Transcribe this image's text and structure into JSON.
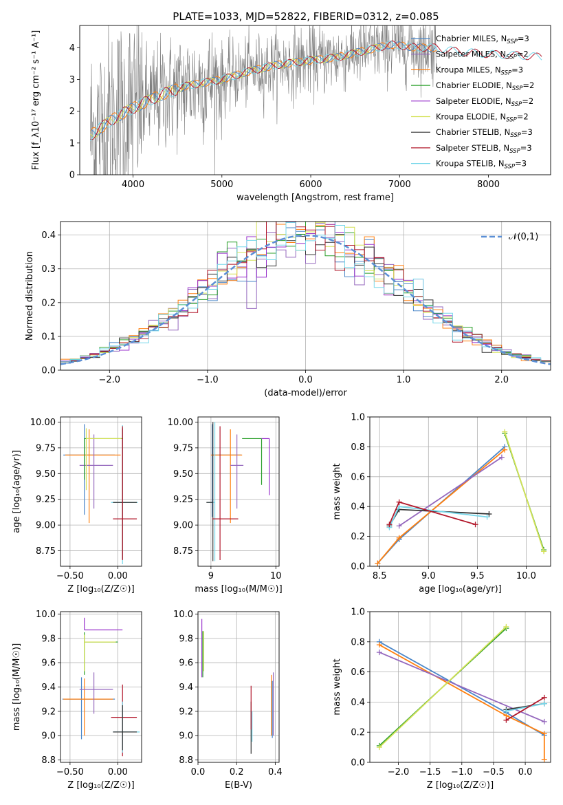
{
  "colors": {
    "Chabrier MILES": "#4a86c8",
    "Salpeter MILES": "#9467bd",
    "Kroupa MILES": "#ff7f0e",
    "Chabrier ELODIE": "#2ca02c",
    "Salpeter ELODIE": "#9932cc",
    "Kroupa ELODIE": "#d4e157",
    "Chabrier STELIB": "#333333",
    "Salpeter STELIB": "#b2182b",
    "Kroupa STELIB": "#76d7ea",
    "normal": "#5b8fd6",
    "spectrum": "#808080"
  },
  "chart_data": [
    {
      "type": "line",
      "title": "PLATE=1033, MJD=52822, FIBERID=0312, z=0.085",
      "xlabel": "wavelength [Angstrom, rest frame]",
      "ylabel": "Flux [f_λ10⁻¹⁷ erg cm⁻² s⁻¹ A⁻¹]",
      "xlim": [
        3400,
        8700
      ],
      "ylim": [
        0,
        4.7
      ],
      "xticks": [
        4000,
        5000,
        6000,
        7000,
        8000
      ],
      "yticks": [
        0,
        1,
        2,
        3,
        4
      ],
      "legend_position": "right",
      "series": [
        {
          "name": "Chabrier MILES, N_SSP=3"
        },
        {
          "name": "Salpeter MILES, N_SSP=2"
        },
        {
          "name": "Kroupa MILES, N_SSP=3"
        },
        {
          "name": "Chabrier ELODIE, N_SSP=2"
        },
        {
          "name": "Salpeter ELODIE, N_SSP=2"
        },
        {
          "name": "Kroupa ELODIE, N_SSP=2"
        },
        {
          "name": "Chabrier STELIB, N_SSP=3"
        },
        {
          "name": "Salpeter STELIB, N_SSP=3"
        },
        {
          "name": "Kroupa STELIB, N_SSP=3"
        }
      ],
      "continuum": {
        "x": [
          3500,
          3600,
          3800,
          4000,
          4300,
          4600,
          5000,
          5300,
          5600,
          6000,
          6300,
          6600,
          6900,
          7200,
          7400,
          7600,
          8000,
          8400,
          8600
        ],
        "y": [
          1.2,
          1.4,
          1.8,
          2.1,
          2.5,
          2.8,
          3.0,
          3.25,
          3.45,
          3.6,
          3.7,
          3.9,
          4.1,
          4.0,
          4.0,
          3.9,
          3.8,
          3.75,
          3.7
        ]
      }
    },
    {
      "type": "line",
      "xlabel": "(data-model)/error",
      "ylabel": "Normed distribution",
      "xlim": [
        -2.5,
        2.5
      ],
      "ylim": [
        0,
        0.44
      ],
      "xticks": [
        -2,
        -1,
        0,
        1,
        2
      ],
      "yticks": [
        0.0,
        0.1,
        0.2,
        0.3,
        0.4
      ],
      "legend": "𝒩(0,1)",
      "legend_position": "top-right",
      "bin_width": 0.1
    },
    {
      "type": "scatter",
      "xlabel": "Z [log₁₀(Z/Z☉)]",
      "ylabel": "age  [log₁₀(age/yr)]",
      "xlim": [
        -0.6,
        0.25
      ],
      "ylim": [
        8.6,
        10.05
      ],
      "xticks": [
        -0.5,
        0.0
      ],
      "yticks": [
        8.75,
        9.0,
        9.25,
        9.5,
        9.75,
        10.0
      ],
      "points": [
        {
          "x": -0.35,
          "y": 9.68,
          "xerr": [
            0.22,
            0.32
          ],
          "yerr": [
            0.58,
            0.3
          ],
          "color": "Chabrier MILES"
        },
        {
          "x": -0.3,
          "y": 9.68,
          "xerr": [
            0.25,
            0.33
          ],
          "yerr": [
            0.66,
            0.25
          ],
          "color": "Kroupa MILES"
        },
        {
          "x": -0.25,
          "y": 9.58,
          "xerr": [
            0.15,
            0.2
          ],
          "yerr": [
            0.42,
            0.3
          ],
          "color": "Salpeter MILES"
        },
        {
          "x": -0.35,
          "y": 9.84,
          "xerr": [
            0.0,
            0.4
          ],
          "yerr": [
            0.4,
            0.0
          ],
          "color": "Chabrier ELODIE"
        },
        {
          "x": -0.33,
          "y": 9.84,
          "xerr": [
            0.0,
            0.37
          ],
          "yerr": [
            0.5,
            0.1
          ],
          "color": "Kroupa ELODIE"
        },
        {
          "x": 0.05,
          "y": 9.22,
          "xerr": [
            0.12,
            0.16
          ],
          "yerr": [
            0.6,
            0.75
          ],
          "color": "Kroupa STELIB"
        },
        {
          "x": 0.05,
          "y": 9.22,
          "xerr": [
            0.1,
            0.15
          ],
          "yerr": [
            0.55,
            0.72
          ],
          "color": "Chabrier STELIB"
        },
        {
          "x": 0.05,
          "y": 9.06,
          "xerr": [
            0.1,
            0.15
          ],
          "yerr": [
            0.4,
            0.9
          ],
          "color": "Salpeter STELIB"
        }
      ]
    },
    {
      "type": "scatter",
      "xlabel": "mass [log₁₀(M/M☉)]",
      "ylabel": "",
      "xlim": [
        8.8,
        10.05
      ],
      "ylim": [
        8.6,
        10.05
      ],
      "xticks": [
        9,
        10
      ],
      "yticks": [
        8.75,
        9.0,
        9.25,
        9.5,
        9.75,
        10.0
      ],
      "points": [
        {
          "x": 9.02,
          "y": 9.68,
          "xerr": [
            0.0,
            0.45
          ],
          "yerr": [
            0.6,
            0.3
          ],
          "color": "Chabrier MILES"
        },
        {
          "x": 9.3,
          "y": 9.68,
          "xerr": [
            0.3,
            0.18
          ],
          "yerr": [
            0.66,
            0.25
          ],
          "color": "Kroupa MILES"
        },
        {
          "x": 9.4,
          "y": 9.58,
          "xerr": [
            0.1,
            0.1
          ],
          "yerr": [
            0.42,
            0.3
          ],
          "color": "Salpeter MILES"
        },
        {
          "x": 9.78,
          "y": 9.84,
          "xerr": [
            0.3,
            0.0
          ],
          "yerr": [
            0.45,
            0.0
          ],
          "color": "Chabrier ELODIE"
        },
        {
          "x": 9.9,
          "y": 9.84,
          "xerr": [
            0.12,
            0.0
          ],
          "yerr": [
            0.55,
            0.0
          ],
          "color": "Salpeter ELODIE"
        },
        {
          "x": 9.06,
          "y": 9.22,
          "xerr": [
            0.12,
            0.0
          ],
          "yerr": [
            0.57,
            0.78
          ],
          "color": "Kroupa STELIB"
        },
        {
          "x": 9.03,
          "y": 9.22,
          "xerr": [
            0.1,
            0.0
          ],
          "yerr": [
            0.57,
            0.78
          ],
          "color": "Chabrier STELIB"
        },
        {
          "x": 9.14,
          "y": 9.06,
          "xerr": [
            0.12,
            0.28
          ],
          "yerr": [
            0.4,
            0.9
          ],
          "color": "Salpeter STELIB"
        }
      ]
    },
    {
      "type": "line",
      "xlabel": "age  [log₁₀(age/yr)]",
      "ylabel": "mass weight",
      "xlim": [
        8.4,
        10.25
      ],
      "ylim": [
        0,
        1.0
      ],
      "xticks": [
        8.5,
        9.0,
        9.5,
        10.0
      ],
      "yticks": [
        0.0,
        0.2,
        0.4,
        0.6,
        0.8,
        1.0
      ],
      "series": [
        {
          "color": "Chabrier MILES",
          "x": [
            8.48,
            8.7,
            9.78
          ],
          "y": [
            0.02,
            0.18,
            0.8
          ]
        },
        {
          "color": "Kroupa MILES",
          "x": [
            8.48,
            8.7,
            9.78
          ],
          "y": [
            0.02,
            0.19,
            0.78
          ]
        },
        {
          "color": "Salpeter MILES",
          "x": [
            8.7,
            9.75
          ],
          "y": [
            0.27,
            0.73
          ]
        },
        {
          "color": "Chabrier ELODIE",
          "x": [
            9.78,
            10.18
          ],
          "y": [
            0.89,
            0.11
          ]
        },
        {
          "color": "Kroupa ELODIE",
          "x": [
            9.78,
            10.18
          ],
          "y": [
            0.9,
            0.1
          ]
        },
        {
          "color": "Chabrier STELIB",
          "x": [
            8.6,
            8.7,
            9.62
          ],
          "y": [
            0.27,
            0.38,
            0.35
          ]
        },
        {
          "color": "Kroupa STELIB",
          "x": [
            8.6,
            8.7,
            9.6
          ],
          "y": [
            0.26,
            0.4,
            0.33
          ]
        },
        {
          "color": "Salpeter STELIB",
          "x": [
            8.6,
            8.7,
            9.48
          ],
          "y": [
            0.28,
            0.43,
            0.28
          ]
        }
      ]
    },
    {
      "type": "scatter",
      "xlabel": "Z [log₁₀(Z/Z☉)]",
      "ylabel": "mass [log₁₀(M/M☉)]",
      "xlim": [
        -0.6,
        0.25
      ],
      "ylim": [
        8.78,
        10.02
      ],
      "xticks": [
        -0.5,
        0.0
      ],
      "yticks": [
        8.8,
        9.0,
        9.2,
        9.4,
        9.6,
        9.8,
        10.0
      ],
      "points": [
        {
          "x": -0.38,
          "y": 9.3,
          "xerr": [
            0.2,
            0.35
          ],
          "yerr": [
            0.33,
            0.18
          ],
          "color": "Chabrier MILES"
        },
        {
          "x": -0.35,
          "y": 9.3,
          "xerr": [
            0.22,
            0.3
          ],
          "yerr": [
            0.3,
            0.17
          ],
          "color": "Kroupa MILES"
        },
        {
          "x": -0.25,
          "y": 9.38,
          "xerr": [
            0.15,
            0.2
          ],
          "yerr": [
            0.2,
            0.14
          ],
          "color": "Salpeter MILES"
        },
        {
          "x": -0.35,
          "y": 9.87,
          "xerr": [
            0.0,
            0.4
          ],
          "yerr": [
            0.0,
            0.1
          ],
          "color": "Salpeter ELODIE"
        },
        {
          "x": -0.35,
          "y": 9.77,
          "xerr": [
            0.0,
            0.35
          ],
          "yerr": [
            0.27,
            0.08
          ],
          "color": "Chabrier ELODIE"
        },
        {
          "x": -0.35,
          "y": 9.77,
          "xerr": [
            0.0,
            0.33
          ],
          "yerr": [
            0.24,
            0.06
          ],
          "color": "Kroupa ELODIE"
        },
        {
          "x": 0.05,
          "y": 9.15,
          "xerr": [
            0.12,
            0.15
          ],
          "yerr": [
            0.32,
            0.27
          ],
          "color": "Salpeter STELIB"
        },
        {
          "x": 0.05,
          "y": 9.03,
          "xerr": [
            0.1,
            0.18
          ],
          "yerr": [
            0.17,
            0.25
          ],
          "color": "Kroupa STELIB"
        },
        {
          "x": 0.05,
          "y": 9.03,
          "xerr": [
            0.1,
            0.15
          ],
          "yerr": [
            0.15,
            0.22
          ],
          "color": "Chabrier STELIB"
        }
      ]
    },
    {
      "type": "scatter",
      "xlabel": "E(B-V)",
      "ylabel": "",
      "xlim": [
        0.0,
        0.42
      ],
      "ylim": [
        8.78,
        10.02
      ],
      "xticks": [
        0.0,
        0.2,
        0.4
      ],
      "yticks": [
        8.8,
        9.0,
        9.2,
        9.4,
        9.6,
        9.8,
        10.0
      ],
      "points": [
        {
          "x": 0.02,
          "y": 9.7,
          "yerr": [
            0.22,
            0.26
          ],
          "color": "Salpeter ELODIE"
        },
        {
          "x": 0.025,
          "y": 9.68,
          "yerr": [
            0.2,
            0.18
          ],
          "color": "Chabrier ELODIE"
        },
        {
          "x": 0.03,
          "y": 9.68,
          "yerr": [
            0.15,
            0.18
          ],
          "color": "Kroupa ELODIE"
        },
        {
          "x": 0.275,
          "y": 9.1,
          "yerr": [
            0.25,
            0.18
          ],
          "color": "Chabrier STELIB"
        },
        {
          "x": 0.275,
          "y": 9.15,
          "yerr": [
            0.1,
            0.26
          ],
          "color": "Salpeter STELIB"
        },
        {
          "x": 0.28,
          "y": 9.05,
          "yerr": [
            0.1,
            0.15
          ],
          "color": "Kroupa STELIB"
        },
        {
          "x": 0.38,
          "y": 9.2,
          "yerr": [
            0.2,
            0.3
          ],
          "color": "Kroupa MILES"
        },
        {
          "x": 0.39,
          "y": 9.2,
          "yerr": [
            0.2,
            0.32
          ],
          "color": "Salpeter MILES"
        },
        {
          "x": 0.385,
          "y": 9.15,
          "yerr": [
            0.17,
            0.3
          ],
          "color": "Chabrier MILES"
        }
      ]
    },
    {
      "type": "line",
      "xlabel": "Z [log₁₀(Z/Z☉)]",
      "ylabel": "mass weight",
      "xlim": [
        -2.45,
        0.4
      ],
      "ylim": [
        0,
        1.0
      ],
      "xticks": [
        -2.0,
        -1.5,
        -1.0,
        -0.5,
        0.0
      ],
      "yticks": [
        0.0,
        0.2,
        0.4,
        0.6,
        0.8,
        1.0
      ],
      "series": [
        {
          "color": "Chabrier MILES",
          "x": [
            -2.3,
            -0.3,
            0.3
          ],
          "y": [
            0.8,
            0.33,
            0.18
          ]
        },
        {
          "color": "Kroupa MILES",
          "x": [
            -2.3,
            -0.3,
            0.3,
            0.3
          ],
          "y": [
            0.78,
            0.31,
            0.19,
            0.02
          ]
        },
        {
          "color": "Salpeter MILES",
          "x": [
            -2.3,
            0.3
          ],
          "y": [
            0.73,
            0.27
          ]
        },
        {
          "color": "Chabrier ELODIE",
          "x": [
            -2.3,
            -0.3
          ],
          "y": [
            0.11,
            0.89
          ]
        },
        {
          "color": "Kroupa ELODIE",
          "x": [
            -2.3,
            -0.3
          ],
          "y": [
            0.1,
            0.9
          ]
        },
        {
          "color": "Chabrier STELIB",
          "x": [
            -0.3,
            0.3
          ],
          "y": [
            0.35,
            0.39
          ]
        },
        {
          "color": "Kroupa STELIB",
          "x": [
            -0.3,
            0.3
          ],
          "y": [
            0.34,
            0.39
          ]
        },
        {
          "color": "Salpeter STELIB",
          "x": [
            -0.3,
            0.3
          ],
          "y": [
            0.28,
            0.43
          ]
        }
      ]
    }
  ]
}
